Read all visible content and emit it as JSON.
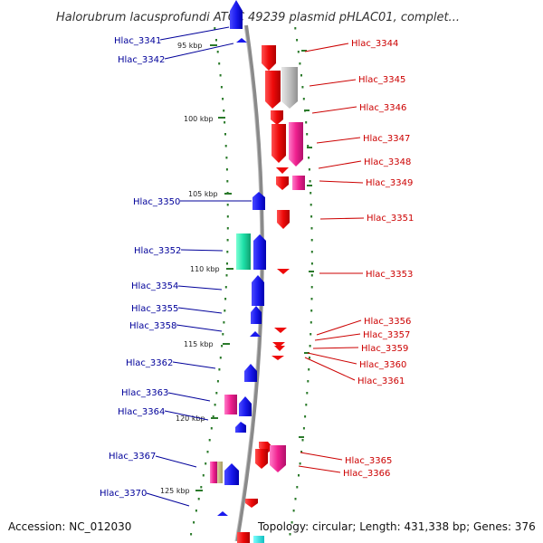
{
  "title": "Halorubrum lacusprofundi ATCC 49239 plasmid pHLAC01, complet...",
  "footer": {
    "accession": "Accession: NC_012030",
    "info": "Topology: circular; Length: 431,338 bp; Genes: 376"
  },
  "colors": {
    "forward_label": "#00009a",
    "reverse_label": "#cc0000",
    "backbone": "#8a8a8a",
    "tick": "#2a7a2a"
  },
  "kbp_ticks": [
    {
      "label": "95 kbp"
    },
    {
      "label": "100 kbp"
    },
    {
      "label": "105 kbp"
    },
    {
      "label": "110 kbp"
    },
    {
      "label": "115 kbp"
    },
    {
      "label": "120 kbp"
    },
    {
      "label": "125 kbp"
    }
  ],
  "left_labels": [
    {
      "name": "Hlac_3341"
    },
    {
      "name": "Hlac_3342"
    },
    {
      "name": "Hlac_3350"
    },
    {
      "name": "Hlac_3352"
    },
    {
      "name": "Hlac_3354"
    },
    {
      "name": "Hlac_3355"
    },
    {
      "name": "Hlac_3358"
    },
    {
      "name": "Hlac_3362"
    },
    {
      "name": "Hlac_3363"
    },
    {
      "name": "Hlac_3364"
    },
    {
      "name": "Hlac_3367"
    },
    {
      "name": "Hlac_3370"
    }
  ],
  "right_labels": [
    {
      "name": "Hlac_3344"
    },
    {
      "name": "Hlac_3345"
    },
    {
      "name": "Hlac_3346"
    },
    {
      "name": "Hlac_3347"
    },
    {
      "name": "Hlac_3348"
    },
    {
      "name": "Hlac_3349"
    },
    {
      "name": "Hlac_3351"
    },
    {
      "name": "Hlac_3353"
    },
    {
      "name": "Hlac_3356"
    },
    {
      "name": "Hlac_3357"
    },
    {
      "name": "Hlac_3359"
    },
    {
      "name": "Hlac_3360"
    },
    {
      "name": "Hlac_3361"
    },
    {
      "name": "Hlac_3365"
    },
    {
      "name": "Hlac_3366"
    }
  ]
}
